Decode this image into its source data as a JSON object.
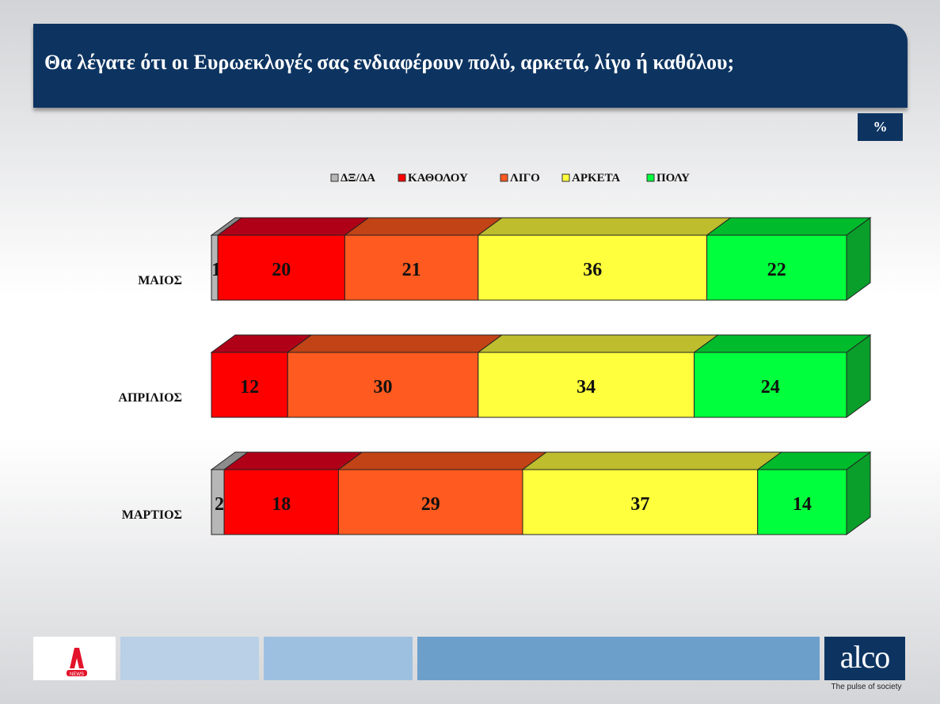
{
  "header": {
    "title": "Θα λέγατε ότι οι Ευρωεκλογές σας ενδιαφέρουν πολύ, αρκετά, λίγο ή καθόλου;"
  },
  "unit_badge": "%",
  "chart_data": {
    "type": "bar",
    "orientation": "horizontal",
    "stacked": true,
    "normalized_percent": true,
    "categories": [
      "ΜΑΙΟΣ",
      "ΑΠΡΙΛΙΟΣ",
      "ΜΑΡΤΙΟΣ"
    ],
    "series": [
      {
        "name": "ΔΞ/ΔΑ",
        "values": [
          1,
          0,
          2
        ],
        "color": "#b7b7b7",
        "top_color": "#8c8c8c",
        "side_color": "#7a7a7a"
      },
      {
        "name": "ΚΑΘΟΛΟΥ",
        "values": [
          20,
          12,
          18
        ],
        "color": "#ff0000",
        "top_color": "#b00018",
        "side_color": "#900010"
      },
      {
        "name": "ΛΙΓΟ",
        "values": [
          21,
          30,
          29
        ],
        "color": "#ff5a1f",
        "top_color": "#c14316",
        "side_color": "#a33a12"
      },
      {
        "name": "ΑΡΚΕΤΑ",
        "values": [
          36,
          34,
          37
        ],
        "color": "#ffff3d",
        "top_color": "#bdbd2e",
        "side_color": "#a8a829"
      },
      {
        "name": "ΠΟΛΥ",
        "values": [
          22,
          24,
          14
        ],
        "color": "#00ff3c",
        "top_color": "#00bb2c",
        "side_color": "#0a9e2a"
      }
    ],
    "legend_position": "top",
    "grid": false
  },
  "footer": {
    "logo_left": "A",
    "logo_left_sub": "NEWS",
    "logo_right": "alco",
    "tagline": "The pulse of society",
    "tile_colors": [
      "#b9d0e6",
      "#9ec0e0",
      "#6d9fcb"
    ]
  }
}
